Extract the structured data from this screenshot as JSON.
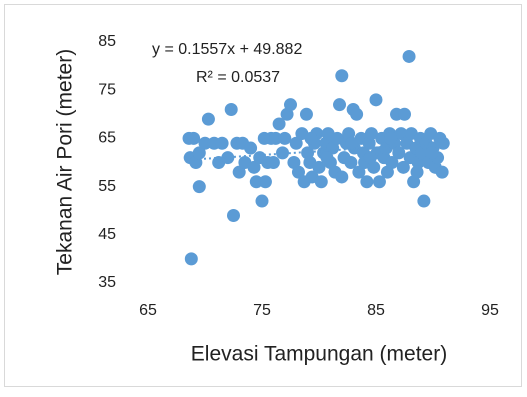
{
  "chart_data": {
    "type": "scatter",
    "x_label": "Elevasi Tampungan (meter)",
    "y_label": "Tekanan Air Pori (meter)",
    "xlim": [
      65,
      95
    ],
    "xticks": [
      65,
      75,
      85,
      95
    ],
    "ylim": [
      35,
      85
    ],
    "yticks": [
      35,
      45,
      55,
      65,
      75,
      85
    ],
    "grid": false,
    "trendline": {
      "slope": 0.1557,
      "intercept": 49.882,
      "label": "y = 0.1557x + 49.882",
      "r2_label": "R² = 0.0537"
    },
    "series": [
      {
        "color": "#5b9bd5",
        "x": [
          68.6,
          69.0,
          68.7,
          69.2,
          69.5,
          68.8,
          69.5,
          70.3,
          70.0,
          70.8,
          71.2,
          71.5,
          72.0,
          72.3,
          72.5,
          72.8,
          73.0,
          73.3,
          73.5,
          74.0,
          74.3,
          74.5,
          74.8,
          75.0,
          75.2,
          75.3,
          75.5,
          75.8,
          76.2,
          76.5,
          76.8,
          77.0,
          77.2,
          77.5,
          77.8,
          78.0,
          78.2,
          78.5,
          78.7,
          78.9,
          79.0,
          79.2,
          79.4,
          79.6,
          79.8,
          80.0,
          80.2,
          80.4,
          80.6,
          80.8,
          81.0,
          81.2,
          81.4,
          81.6,
          81.8,
          82.0,
          82.0,
          82.2,
          82.4,
          82.6,
          82.8,
          83.0,
          83.1,
          83.3,
          83.5,
          83.7,
          83.9,
          84.0,
          84.2,
          84.4,
          84.6,
          84.8,
          85.0,
          85.1,
          85.3,
          85.5,
          85.7,
          85.9,
          86.0,
          86.2,
          86.4,
          86.6,
          86.8,
          87.0,
          87.2,
          87.4,
          87.5,
          87.7,
          87.9,
          88.0,
          88.1,
          88.3,
          88.5,
          88.7,
          88.9,
          89.0,
          89.2,
          89.4,
          89.6,
          89.8,
          90.0,
          90.2,
          90.4,
          90.6,
          90.8,
          90.9,
          76.0,
          79.3,
          80.7,
          82.9,
          84.5,
          86.3,
          88.6,
          89.9
        ],
        "values": [
          65,
          65,
          61,
          60,
          62,
          40,
          55,
          69,
          64,
          64,
          60,
          64,
          61,
          71,
          49,
          64,
          58,
          64,
          60,
          63,
          59,
          56,
          61,
          52,
          65,
          56,
          60,
          65,
          65,
          68,
          62,
          65,
          70,
          72,
          60,
          64,
          58,
          66,
          56,
          70,
          62,
          60,
          57,
          64,
          66,
          59,
          56,
          62,
          64,
          66,
          60,
          63,
          58,
          65,
          72,
          78,
          57,
          61,
          64,
          66,
          60,
          71,
          63,
          70,
          58,
          65,
          62,
          60,
          56,
          64,
          66,
          59,
          73,
          62,
          56,
          65,
          61,
          63,
          58,
          66,
          60,
          64,
          70,
          62,
          66,
          59,
          70,
          64,
          82,
          61,
          66,
          56,
          63,
          60,
          65,
          62,
          52,
          64,
          60,
          66,
          63,
          59,
          61,
          65,
          58,
          64,
          60,
          65,
          61,
          64,
          61,
          65,
          58,
          62
        ]
      }
    ]
  }
}
